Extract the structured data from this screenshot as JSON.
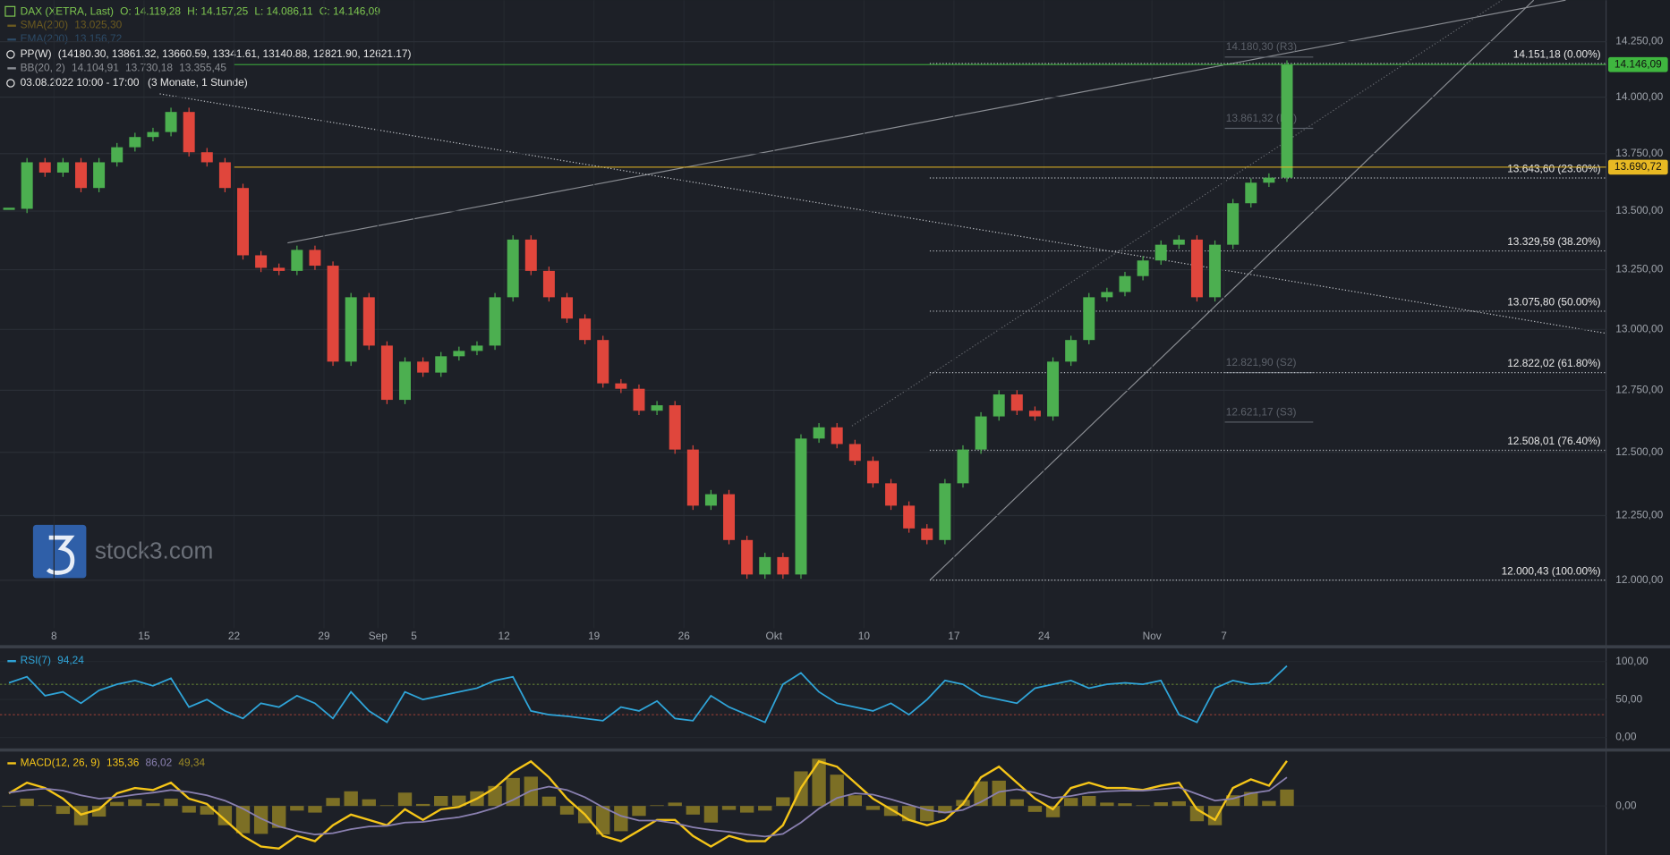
{
  "header": {
    "instrument": "DAX (XETRA, Last)",
    "open": "O: 14.119,28",
    "high": "H: 14.157,25",
    "low": "L: 14.086,11",
    "close": "C: 14.146,09",
    "sma": "SMA(200)",
    "sma_value": "13.025,30",
    "ema": "EMA(200)",
    "ema_value": "13.156,72",
    "pp": "PP(W)",
    "pp_values": "(14180.30, 13861.32, 13660.59, 13341.61, 13140.88, 12821.90, 12621.17)",
    "bb": "BB(20, 2)",
    "bb_values": [
      "14.104,91",
      "13.730,18",
      "13.355,45"
    ],
    "period": "03.08.2022 10:00 - 17:00",
    "range": "(3 Monate, 1 Stunde)"
  },
  "watermark": "stock3.com",
  "chart_data": [
    {
      "type": "candlestick",
      "categories": [
        null,
        null,
        null,
        "8",
        null,
        null,
        null,
        null,
        "15",
        null,
        null,
        null,
        null,
        "22",
        null,
        null,
        null,
        null,
        "29",
        null,
        null,
        "Sep",
        null,
        "5",
        null,
        null,
        null,
        null,
        "12",
        null,
        null,
        null,
        null,
        "19",
        null,
        null,
        null,
        null,
        "26",
        null,
        null,
        null,
        null,
        "Okt",
        null,
        null,
        null,
        null,
        "10",
        null,
        null,
        null,
        null,
        "17",
        null,
        null,
        null,
        null,
        "24",
        null,
        null,
        null,
        null,
        null,
        "Nov",
        null,
        null,
        null,
        "7",
        null,
        null,
        null
      ],
      "values": [
        13510,
        13712,
        13667,
        13712,
        13600,
        13712,
        13778,
        13823,
        13845,
        13934,
        13756,
        13712,
        13600,
        13311,
        13258,
        13245,
        13334,
        13267,
        12867,
        13134,
        12933,
        12711,
        12867,
        12822,
        12889,
        12911,
        12933,
        13134,
        13378,
        13245,
        13134,
        13045,
        12956,
        12778,
        12756,
        12667,
        12689,
        12511,
        12289,
        12334,
        12155,
        12022,
        12089,
        12022,
        12555,
        12600,
        12533,
        12466,
        12377,
        12289,
        12200,
        12155,
        12377,
        12511,
        12644,
        12733,
        12667,
        12644,
        12867,
        12956,
        13134,
        13156,
        13223,
        13289,
        13356,
        13378,
        13134,
        13356,
        13534,
        13623,
        13645,
        14146.09
      ],
      "up_color": "#4caf50",
      "down_color": "#e0463c",
      "log": true,
      "grid": true,
      "ylim": [
        11818,
        14440
      ],
      "yticks": [
        {
          "value": 14250,
          "label": "14.250,00"
        },
        {
          "value": 14000,
          "label": "14.000,00"
        },
        {
          "value": 13750,
          "label": "13.750,00"
        },
        {
          "value": 13500,
          "label": "13.500,00"
        },
        {
          "value": 13250,
          "label": "13.250,00"
        },
        {
          "value": 13000,
          "label": "13.000,00"
        },
        {
          "value": 12750,
          "label": "12.750,00"
        },
        {
          "value": 12500,
          "label": "12.500,00"
        },
        {
          "value": 12250,
          "label": "12.250,00"
        },
        {
          "value": 12000,
          "label": "12.000,00"
        }
      ],
      "fib_levels": [
        {
          "value": 14151.18,
          "label": "14.151,18 (0.00%)"
        },
        {
          "value": 13643.6,
          "label": "13.643,60 (23.60%)"
        },
        {
          "value": 13329.59,
          "label": "13.329,59 (38.20%)"
        },
        {
          "value": 13075.8,
          "label": "13.075,80 (50.00%)"
        },
        {
          "value": 12822.02,
          "label": "12.822,02 (61.80%)"
        },
        {
          "value": 12508.01,
          "label": "12.508,01 (76.40%)"
        },
        {
          "value": 12000.43,
          "label": "12.000,43 (100.00%)"
        }
      ],
      "pivots": [
        {
          "value": 14180.3,
          "label": "14.180,30 (R3)"
        },
        {
          "value": 13861.32,
          "label": "13.861,32 (R2)"
        },
        {
          "value": 12821.9,
          "label": "12.821,90 (S2)"
        },
        {
          "value": 12621.17,
          "label": "12.621,17 (S3)"
        }
      ],
      "price_tags": [
        {
          "value": 14146.09,
          "label": "14.146,09",
          "color": "#3fb63f"
        },
        {
          "value": 13690.72,
          "label": "13.690,72",
          "color": "#e8b923"
        }
      ]
    },
    {
      "type": "line",
      "title": "RSI(7)",
      "value_label": "94,24",
      "color": "#2fa4d8",
      "values": [
        72,
        80,
        55,
        60,
        45,
        62,
        70,
        75,
        68,
        78,
        40,
        50,
        35,
        25,
        45,
        40,
        55,
        45,
        25,
        60,
        35,
        20,
        60,
        50,
        55,
        60,
        65,
        75,
        80,
        35,
        30,
        28,
        25,
        22,
        40,
        35,
        48,
        25,
        22,
        55,
        40,
        30,
        20,
        70,
        85,
        60,
        45,
        40,
        35,
        45,
        30,
        50,
        75,
        70,
        55,
        50,
        45,
        65,
        70,
        75,
        65,
        70,
        72,
        70,
        75,
        30,
        20,
        65,
        75,
        70,
        72,
        94.24
      ],
      "ylim": [
        -13,
        116
      ],
      "yticks": [
        {
          "value": 100,
          "label": "100,00"
        },
        {
          "value": 50,
          "label": "50,00"
        },
        {
          "value": 0,
          "label": "0,00"
        }
      ],
      "levels": [
        {
          "value": 70,
          "color": "#5f7d34"
        },
        {
          "value": 30,
          "color": "#8a3a34"
        }
      ]
    },
    {
      "type": "macd",
      "title": "MACD(12, 26, 9)",
      "series": [
        {
          "kind": "line",
          "color": "#f5c518",
          "last_label": "135,36",
          "values": [
            38,
            70,
            54,
            22,
            -26,
            -10,
            38,
            54,
            48,
            70,
            22,
            6,
            -42,
            -90,
            -122,
            -128,
            -90,
            -106,
            -58,
            -26,
            -42,
            -58,
            -10,
            -42,
            -10,
            -3,
            22,
            54,
            102,
            134,
            86,
            22,
            -26,
            -90,
            -106,
            -74,
            -42,
            -42,
            -90,
            -122,
            -90,
            -106,
            -106,
            -58,
            54,
            134,
            118,
            70,
            22,
            -10,
            -42,
            -58,
            -42,
            6,
            86,
            118,
            70,
            22,
            -10,
            54,
            70,
            54,
            54,
            48,
            61,
            70,
            -10,
            -42,
            54,
            80,
            61,
            135.36
          ]
        },
        {
          "kind": "line",
          "color": "#8a80b0",
          "last_label": "86,02",
          "values": [
            40,
            48,
            52,
            46,
            32,
            22,
            26,
            34,
            40,
            48,
            42,
            32,
            16,
            -8,
            -38,
            -62,
            -76,
            -86,
            -82,
            -70,
            -62,
            -60,
            -50,
            -48,
            -40,
            -34,
            -22,
            -6,
            18,
            46,
            58,
            48,
            26,
            -4,
            -30,
            -44,
            -44,
            -52,
            -64,
            -72,
            -78,
            -86,
            -92,
            -84,
            -50,
            -8,
            24,
            38,
            34,
            20,
            4,
            -12,
            -20,
            -12,
            12,
            42,
            50,
            40,
            24,
            30,
            40,
            44,
            46,
            46,
            50,
            56,
            36,
            16,
            22,
            38,
            46,
            86.02
          ]
        },
        {
          "kind": "histogram",
          "color": "#9c8a25",
          "last_label": "49,34",
          "values": [
            -2,
            22,
            2,
            -24,
            -58,
            -32,
            12,
            20,
            8,
            22,
            -20,
            -26,
            -58,
            -82,
            -84,
            -66,
            -14,
            -20,
            24,
            44,
            20,
            2,
            40,
            6,
            30,
            31,
            44,
            60,
            84,
            88,
            28,
            -26,
            -52,
            -86,
            -76,
            -30,
            2,
            10,
            -26,
            -50,
            -12,
            -20,
            -14,
            26,
            104,
            142,
            94,
            32,
            -12,
            -30,
            -46,
            -46,
            -22,
            18,
            74,
            76,
            20,
            -18,
            -34,
            24,
            30,
            10,
            8,
            2,
            11,
            14,
            -46,
            -58,
            32,
            42,
            15,
            49.34
          ]
        }
      ],
      "ylim": [
        -147,
        157
      ],
      "yticks": [
        {
          "value": 0,
          "label": "0,00"
        }
      ]
    }
  ]
}
